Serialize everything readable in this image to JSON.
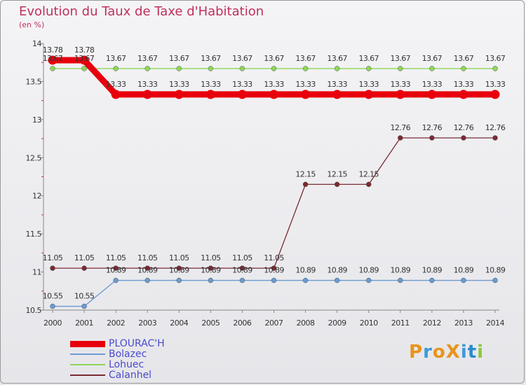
{
  "chart_data": {
    "type": "line",
    "title": "Evolution du Taux de Taxe d'Habitation",
    "subtitle": "(en %)",
    "xlabel": "",
    "ylabel": "",
    "x": [
      "2000",
      "2001",
      "2002",
      "2003",
      "2004",
      "2005",
      "2006",
      "2007",
      "2008",
      "2009",
      "2010",
      "2011",
      "2012",
      "2013",
      "2014"
    ],
    "ylim": [
      10.5,
      14
    ],
    "yticks": [
      "10.5",
      "11",
      "11.5",
      "12",
      "12.5",
      "13",
      "13.5",
      "14"
    ],
    "grid": false,
    "legend_position": "bottom-left",
    "series": [
      {
        "name": "PLOURAC'H",
        "color": "#e8000d",
        "values": [
          13.78,
          13.78,
          13.33,
          13.33,
          13.33,
          13.33,
          13.33,
          13.33,
          13.33,
          13.33,
          13.33,
          13.33,
          13.33,
          13.33,
          13.33
        ],
        "labels": [
          "13.78",
          "13.78",
          "13.33",
          "13.33",
          "13.33",
          "13.33",
          "13.33",
          "13.33",
          "13.33",
          "13.33",
          "13.33",
          "13.33",
          "13.33",
          "13.33",
          "13.33"
        ]
      },
      {
        "name": "Bolazec",
        "color": "#6a9bd0",
        "values": [
          10.55,
          10.55,
          10.89,
          10.89,
          10.89,
          10.89,
          10.89,
          10.89,
          10.89,
          10.89,
          10.89,
          10.89,
          10.89,
          10.89,
          10.89
        ],
        "labels": [
          "10.55",
          "10.55",
          "10.89",
          "10.89",
          "10.89",
          "10.89",
          "10.89",
          "10.89",
          "10.89",
          "10.89",
          "10.89",
          "10.89",
          "10.89",
          "10.89",
          "10.89"
        ]
      },
      {
        "name": "Lohuec",
        "color": "#8ed65a",
        "values": [
          13.67,
          13.67,
          13.67,
          13.67,
          13.67,
          13.67,
          13.67,
          13.67,
          13.67,
          13.67,
          13.67,
          13.67,
          13.67,
          13.67,
          13.67
        ],
        "labels": [
          "13.67",
          "13.67",
          "13.67",
          "13.67",
          "13.67",
          "13.67",
          "13.67",
          "13.67",
          "13.67",
          "13.67",
          "13.67",
          "13.67",
          "13.67",
          "13.67",
          "13.67"
        ]
      },
      {
        "name": "Calanhel",
        "color": "#7a2a32",
        "values": [
          11.05,
          11.05,
          11.05,
          11.05,
          11.05,
          11.05,
          11.05,
          11.05,
          12.15,
          12.15,
          12.15,
          12.76,
          12.76,
          12.76,
          12.76
        ],
        "labels": [
          "11.05",
          "11.05",
          "11.05",
          "11.05",
          "11.05",
          "11.05",
          "11.05",
          "11.05",
          "12.15",
          "12.15",
          "12.15",
          "12.76",
          "12.76",
          "12.76",
          "12.76"
        ]
      }
    ]
  },
  "logo": {
    "text": "ProXiti",
    "colors": [
      "#e8941a",
      "#3a9ad9",
      "#e8941a",
      "#e8941a",
      "#3a9ad9",
      "#2a8ad0",
      "#8ec63f"
    ]
  }
}
